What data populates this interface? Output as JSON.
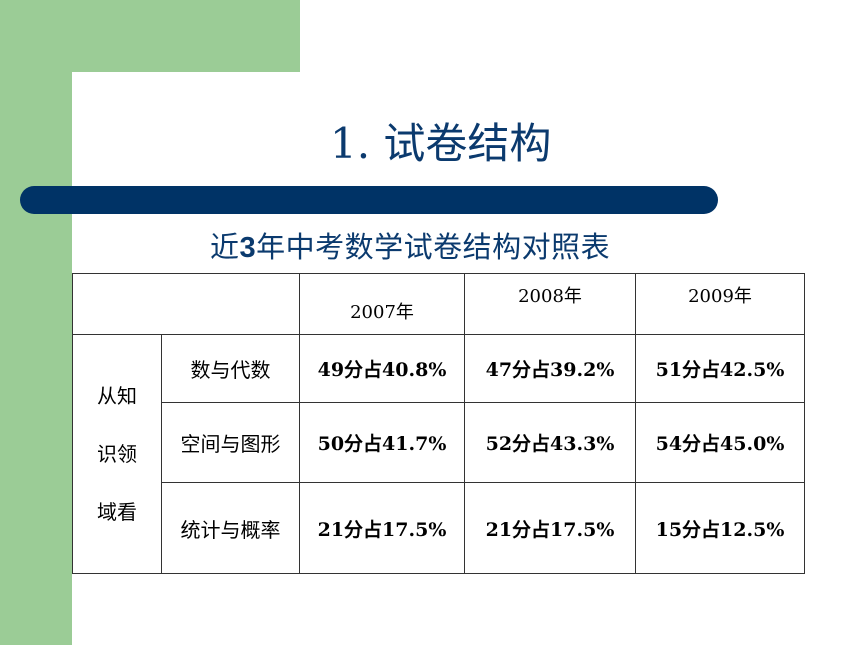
{
  "slide": {
    "title": "1. 试卷结构",
    "subtitle_prefix": "近",
    "subtitle_num": "3",
    "subtitle_suffix": "年中考数学试卷结构对照表"
  },
  "table": {
    "years": [
      "2007年",
      "2008年",
      "2009年"
    ],
    "side_label_lines": [
      "从知",
      "识领",
      "域看"
    ],
    "rows": [
      {
        "label": "数与代数",
        "values": [
          "49分占40.8%",
          "47分占39.2%",
          "51分占42.5%"
        ]
      },
      {
        "label": "空间与图形",
        "values": [
          "50分占41.7%",
          "52分占43.3%",
          "54分占45.0%"
        ]
      },
      {
        "label": "统计与概率",
        "values": [
          "21分占17.5%",
          "21分占17.5%",
          "15分占12.5%"
        ]
      }
    ]
  },
  "colors": {
    "green": "#9bcc96",
    "navy_bar": "#003366",
    "title_text": "#0b3a6e"
  }
}
